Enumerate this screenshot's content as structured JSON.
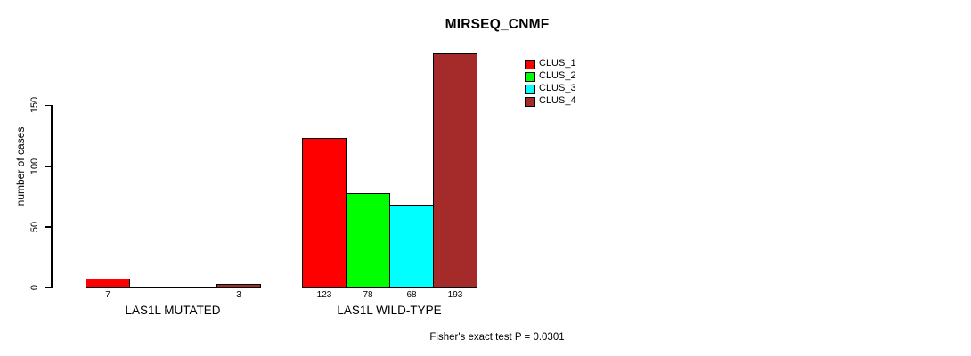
{
  "chart_data": {
    "type": "bar",
    "title": "MIRSEQ_CNMF",
    "xlabel": "",
    "ylabel": "number of cases",
    "ylim": [
      0,
      150
    ],
    "yticks": [
      0,
      50,
      100,
      150
    ],
    "grid": false,
    "legend_position": "top-right",
    "groups": [
      "LAS1L MUTATED",
      "LAS1L WILD-TYPE"
    ],
    "series": [
      {
        "name": "CLUS_1",
        "color": "#ff0000",
        "values": [
          7,
          123
        ]
      },
      {
        "name": "CLUS_2",
        "color": "#00ff00",
        "values": [
          0,
          78
        ]
      },
      {
        "name": "CLUS_3",
        "color": "#00ffff",
        "values": [
          0,
          68
        ]
      },
      {
        "name": "CLUS_4",
        "color": "#a52a2a",
        "values": [
          3,
          193
        ]
      }
    ],
    "bar_value_labels": {
      "shown_for": "nonzero bars",
      "values_group1": [
        7,
        3
      ],
      "values_group2": [
        123,
        78,
        68,
        193
      ]
    },
    "annotation": "Fisher's exact test P = 0.0301"
  }
}
